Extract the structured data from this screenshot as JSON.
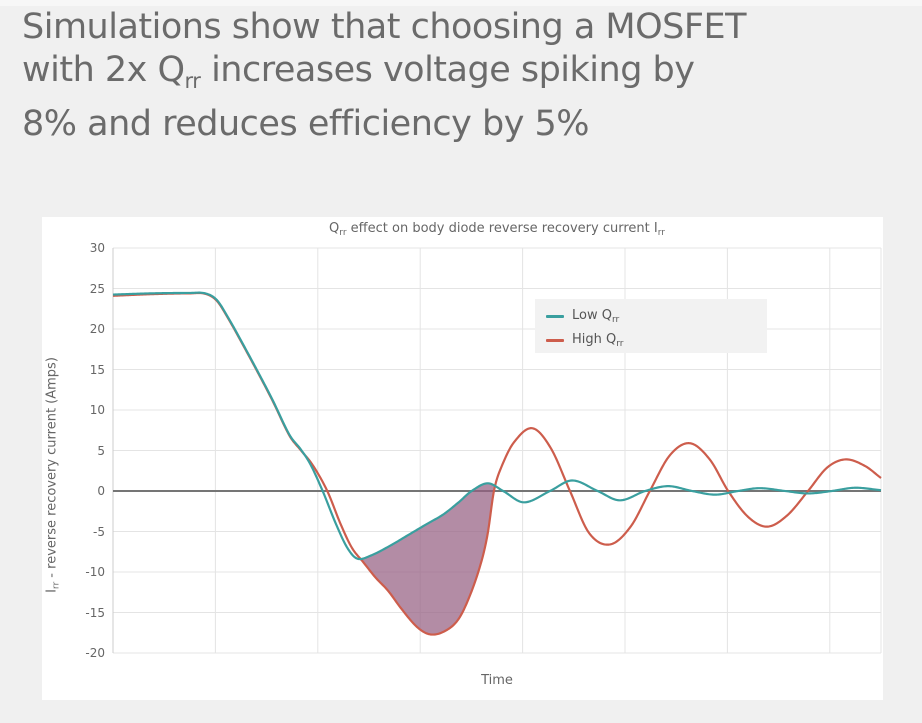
{
  "page": {
    "background": "#f0f0f0",
    "top_strip": "#f7f7f7"
  },
  "heading": {
    "color": "#6b6b6b",
    "line1": "Simulations show that choosing a MOSFET",
    "line2_pre": "with 2x Q",
    "line2_sub": "rr",
    "line2_post": " increases voltage spiking by",
    "line3": "8% and reduces efficiency by 5%"
  },
  "chart_data": {
    "type": "line",
    "title_pre": "Q",
    "title_sub1": "rr",
    "title_mid": " effect on body diode reverse recovery current I",
    "title_sub2": "rr",
    "xlabel": "Time",
    "ylabel_pre": "I",
    "ylabel_sub": "rr",
    "ylabel_post": " - reverse recovery current (Amps)",
    "x_range": [
      0,
      10
    ],
    "ylim": [
      -20,
      30
    ],
    "y_ticks": [
      30,
      25,
      20,
      15,
      10,
      5,
      0,
      -5,
      -10,
      -15,
      -20
    ],
    "x_gridlines_t": [
      0,
      1.3333,
      2.6667,
      4,
      5.3333,
      6.6667,
      8,
      9.3333,
      10
    ],
    "grid": true,
    "legend_position": "upper-right-inside",
    "colors": {
      "gridline": "#e4e4e4",
      "left_axis": "#cccccc",
      "zero_line": "#757575",
      "axis_text": "#666666",
      "legend_bg": "#f2f2f2",
      "legend_text": "#555555",
      "shade": "#965f82"
    },
    "shade_opacity": 0.72,
    "shaded_region": {
      "description": "area between Low Qrr and High Qrr curves where High Qrr is below Low Qrr (reverse recovery charge difference)",
      "t_window": [
        2.9,
        5.3
      ]
    },
    "series": [
      {
        "name": "Low Qrr",
        "legend_pre": "Low Q",
        "legend_sub": "rr",
        "color": "#3a9f9f",
        "points": [
          [
            0,
            24.25
          ],
          [
            0.5,
            24.4
          ],
          [
            1.0,
            24.45
          ],
          [
            1.2,
            24.4
          ],
          [
            1.35,
            23.6
          ],
          [
            1.5,
            21.4
          ],
          [
            1.7,
            18.0
          ],
          [
            1.91,
            14.3
          ],
          [
            2.08,
            11.2
          ],
          [
            2.3,
            6.9
          ],
          [
            2.44,
            5.2
          ],
          [
            2.57,
            3.3
          ],
          [
            2.73,
            0
          ],
          [
            2.9,
            -4.0
          ],
          [
            3.05,
            -7.0
          ],
          [
            3.18,
            -8.35
          ],
          [
            3.35,
            -8.0
          ],
          [
            3.6,
            -6.8
          ],
          [
            3.85,
            -5.4
          ],
          [
            4.1,
            -4.0
          ],
          [
            4.3,
            -2.9
          ],
          [
            4.5,
            -1.4
          ],
          [
            4.67,
            0
          ],
          [
            4.88,
            0.95
          ],
          [
            5.08,
            0
          ],
          [
            5.35,
            -1.4
          ],
          [
            5.69,
            0
          ],
          [
            5.98,
            1.3
          ],
          [
            6.31,
            0
          ],
          [
            6.6,
            -1.15
          ],
          [
            6.93,
            0
          ],
          [
            7.23,
            0.6
          ],
          [
            7.54,
            0
          ],
          [
            7.84,
            -0.45
          ],
          [
            8.14,
            0
          ],
          [
            8.42,
            0.35
          ],
          [
            8.75,
            0
          ],
          [
            9.05,
            -0.3
          ],
          [
            9.36,
            0
          ],
          [
            9.66,
            0.4
          ],
          [
            10,
            0.1
          ]
        ]
      },
      {
        "name": "High Qrr",
        "legend_pre": "High Q",
        "legend_sub": "rr",
        "color": "#cd5d4c",
        "points": [
          [
            0,
            24.1
          ],
          [
            0.5,
            24.3
          ],
          [
            1.0,
            24.4
          ],
          [
            1.2,
            24.35
          ],
          [
            1.35,
            23.5
          ],
          [
            1.5,
            21.3
          ],
          [
            1.7,
            17.9
          ],
          [
            1.91,
            14.2
          ],
          [
            2.08,
            11.1
          ],
          [
            2.3,
            6.8
          ],
          [
            2.44,
            5.1
          ],
          [
            2.6,
            3.2
          ],
          [
            2.79,
            0
          ],
          [
            2.96,
            -4.0
          ],
          [
            3.11,
            -7.0
          ],
          [
            3.26,
            -8.8
          ],
          [
            3.42,
            -10.7
          ],
          [
            3.58,
            -12.3
          ],
          [
            3.76,
            -14.6
          ],
          [
            3.96,
            -16.8
          ],
          [
            4.13,
            -17.7
          ],
          [
            4.32,
            -17.3
          ],
          [
            4.5,
            -15.8
          ],
          [
            4.66,
            -12.6
          ],
          [
            4.8,
            -8.6
          ],
          [
            4.88,
            -5.2
          ],
          [
            4.96,
            0
          ],
          [
            5.05,
            2.8
          ],
          [
            5.22,
            6.0
          ],
          [
            5.46,
            7.75
          ],
          [
            5.7,
            5.3
          ],
          [
            5.95,
            0
          ],
          [
            6.2,
            -5.2
          ],
          [
            6.47,
            -6.6
          ],
          [
            6.74,
            -4.4
          ],
          [
            6.99,
            0
          ],
          [
            7.25,
            4.4
          ],
          [
            7.51,
            5.9
          ],
          [
            7.77,
            3.9
          ],
          [
            8.01,
            0
          ],
          [
            8.27,
            -3.2
          ],
          [
            8.52,
            -4.4
          ],
          [
            8.78,
            -3.0
          ],
          [
            9.05,
            0
          ],
          [
            9.3,
            2.9
          ],
          [
            9.54,
            3.9
          ],
          [
            9.79,
            3.1
          ],
          [
            10,
            1.6
          ]
        ]
      }
    ]
  }
}
